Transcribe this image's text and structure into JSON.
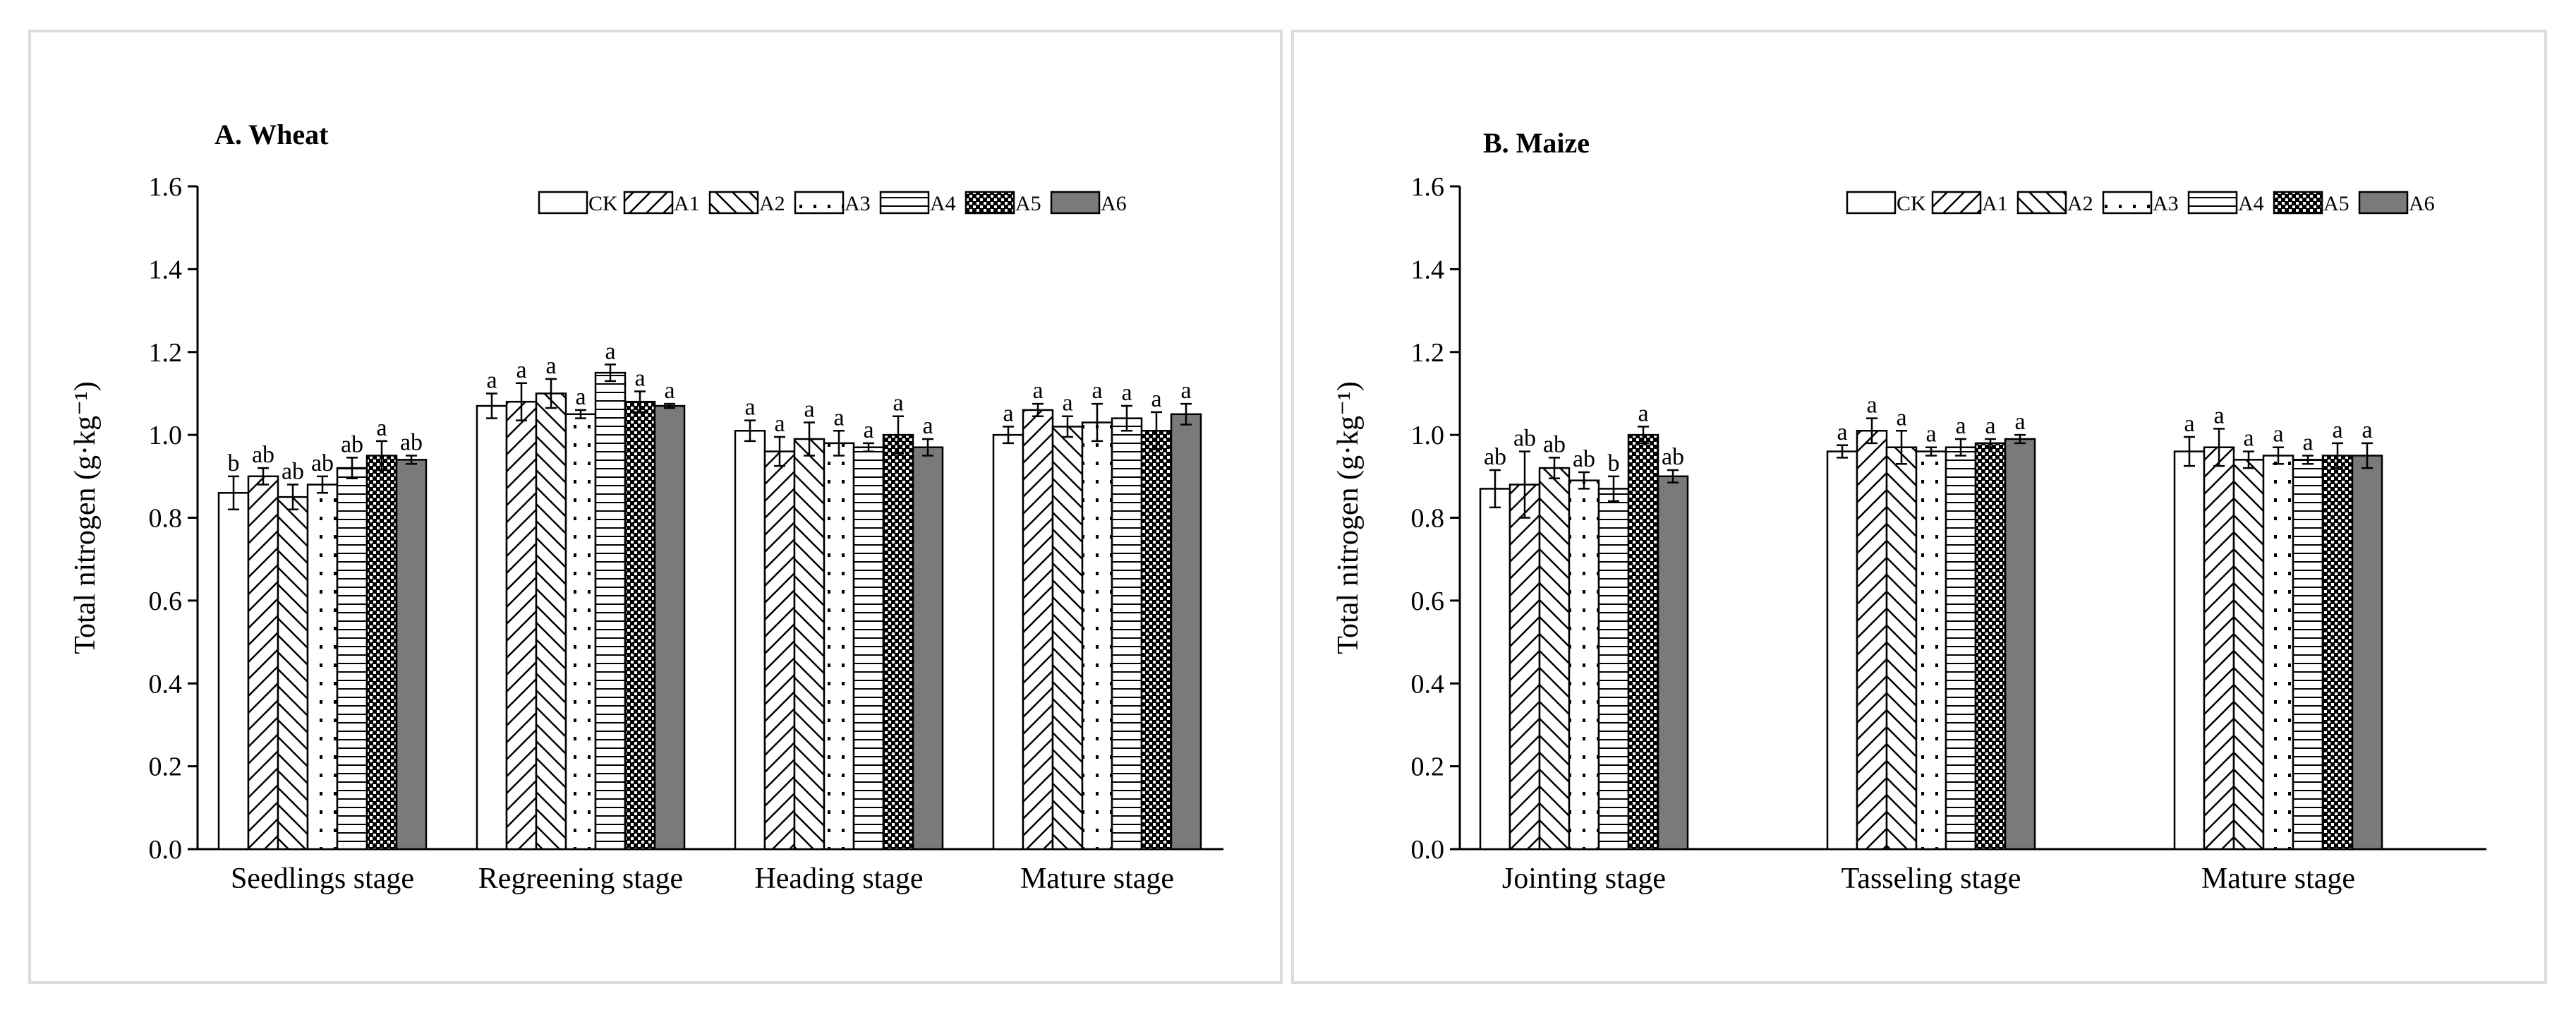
{
  "chart_data": [
    {
      "type": "bar",
      "title": "A. Wheat",
      "ylabel": "Total nitrogen (g·kg⁻¹)",
      "xlabel": "",
      "ylim": [
        0,
        1.6
      ],
      "yticks": [
        "0.0",
        "0.2",
        "0.4",
        "0.6",
        "0.8",
        "1.0",
        "1.2",
        "1.4",
        "1.6"
      ],
      "legend_position": "top-right",
      "categories": [
        "Seedlings stage",
        "Regreening stage",
        "Heading stage",
        "Mature stage"
      ],
      "series": [
        {
          "name": "CK",
          "values": [
            0.86,
            1.07,
            1.01,
            1.0
          ],
          "errors": [
            0.04,
            0.03,
            0.025,
            0.02
          ],
          "letters": [
            "b",
            "a",
            "a",
            "a"
          ]
        },
        {
          "name": "A1",
          "values": [
            0.9,
            1.08,
            0.96,
            1.06
          ],
          "errors": [
            0.02,
            0.045,
            0.035,
            0.015
          ],
          "letters": [
            "ab",
            "a",
            "a",
            "a"
          ]
        },
        {
          "name": "A2",
          "values": [
            0.85,
            1.1,
            0.99,
            1.02
          ],
          "errors": [
            0.03,
            0.035,
            0.04,
            0.025
          ],
          "letters": [
            "ab",
            "a",
            "a",
            "a"
          ]
        },
        {
          "name": "A3",
          "values": [
            0.88,
            1.05,
            0.98,
            1.03
          ],
          "errors": [
            0.02,
            0.01,
            0.03,
            0.045
          ],
          "letters": [
            "ab",
            "a",
            "a",
            "a"
          ]
        },
        {
          "name": "A4",
          "values": [
            0.92,
            1.15,
            0.97,
            1.04
          ],
          "errors": [
            0.025,
            0.02,
            0.01,
            0.03
          ],
          "letters": [
            "ab",
            "a",
            "a",
            "a"
          ]
        },
        {
          "name": "A5",
          "values": [
            0.95,
            1.08,
            1.0,
            1.01
          ],
          "errors": [
            0.035,
            0.025,
            0.045,
            0.045
          ],
          "letters": [
            "a",
            "a",
            "a",
            "a"
          ]
        },
        {
          "name": "A6",
          "values": [
            0.94,
            1.07,
            0.97,
            1.05
          ],
          "errors": [
            0.01,
            0.005,
            0.02,
            0.025
          ],
          "letters": [
            "ab",
            "a",
            "a",
            "a"
          ]
        }
      ]
    },
    {
      "type": "bar",
      "title": "B. Maize",
      "ylabel": "Total nitrogen (g·kg⁻¹)",
      "xlabel": "",
      "ylim": [
        0,
        1.6
      ],
      "yticks": [
        "0.0",
        "0.2",
        "0.4",
        "0.6",
        "0.8",
        "1.0",
        "1.2",
        "1.4",
        "1.6"
      ],
      "legend_position": "top-right",
      "categories": [
        "Jointing stage",
        "Tasseling stage",
        "Mature stage"
      ],
      "series": [
        {
          "name": "CK",
          "values": [
            0.87,
            0.96,
            0.96
          ],
          "errors": [
            0.045,
            0.015,
            0.035
          ],
          "letters": [
            "ab",
            "a",
            "a"
          ]
        },
        {
          "name": "A1",
          "values": [
            0.88,
            1.01,
            0.97
          ],
          "errors": [
            0.08,
            0.03,
            0.045
          ],
          "letters": [
            "ab",
            "a",
            "a"
          ]
        },
        {
          "name": "A2",
          "values": [
            0.92,
            0.97,
            0.94
          ],
          "errors": [
            0.025,
            0.04,
            0.02
          ],
          "letters": [
            "ab",
            "a",
            "a"
          ]
        },
        {
          "name": "A3",
          "values": [
            0.89,
            0.96,
            0.95
          ],
          "errors": [
            0.02,
            0.01,
            0.02
          ],
          "letters": [
            "ab",
            "a",
            "a"
          ]
        },
        {
          "name": "A4",
          "values": [
            0.87,
            0.97,
            0.94
          ],
          "errors": [
            0.03,
            0.02,
            0.01
          ],
          "letters": [
            "b",
            "a",
            "a"
          ]
        },
        {
          "name": "A5",
          "values": [
            1.0,
            0.98,
            0.95
          ],
          "errors": [
            0.02,
            0.01,
            0.03
          ],
          "letters": [
            "a",
            "a",
            "a"
          ]
        },
        {
          "name": "A6",
          "values": [
            0.9,
            0.99,
            0.95
          ],
          "errors": [
            0.015,
            0.01,
            0.03
          ],
          "letters": [
            "ab",
            "a",
            "a"
          ]
        }
      ]
    }
  ]
}
